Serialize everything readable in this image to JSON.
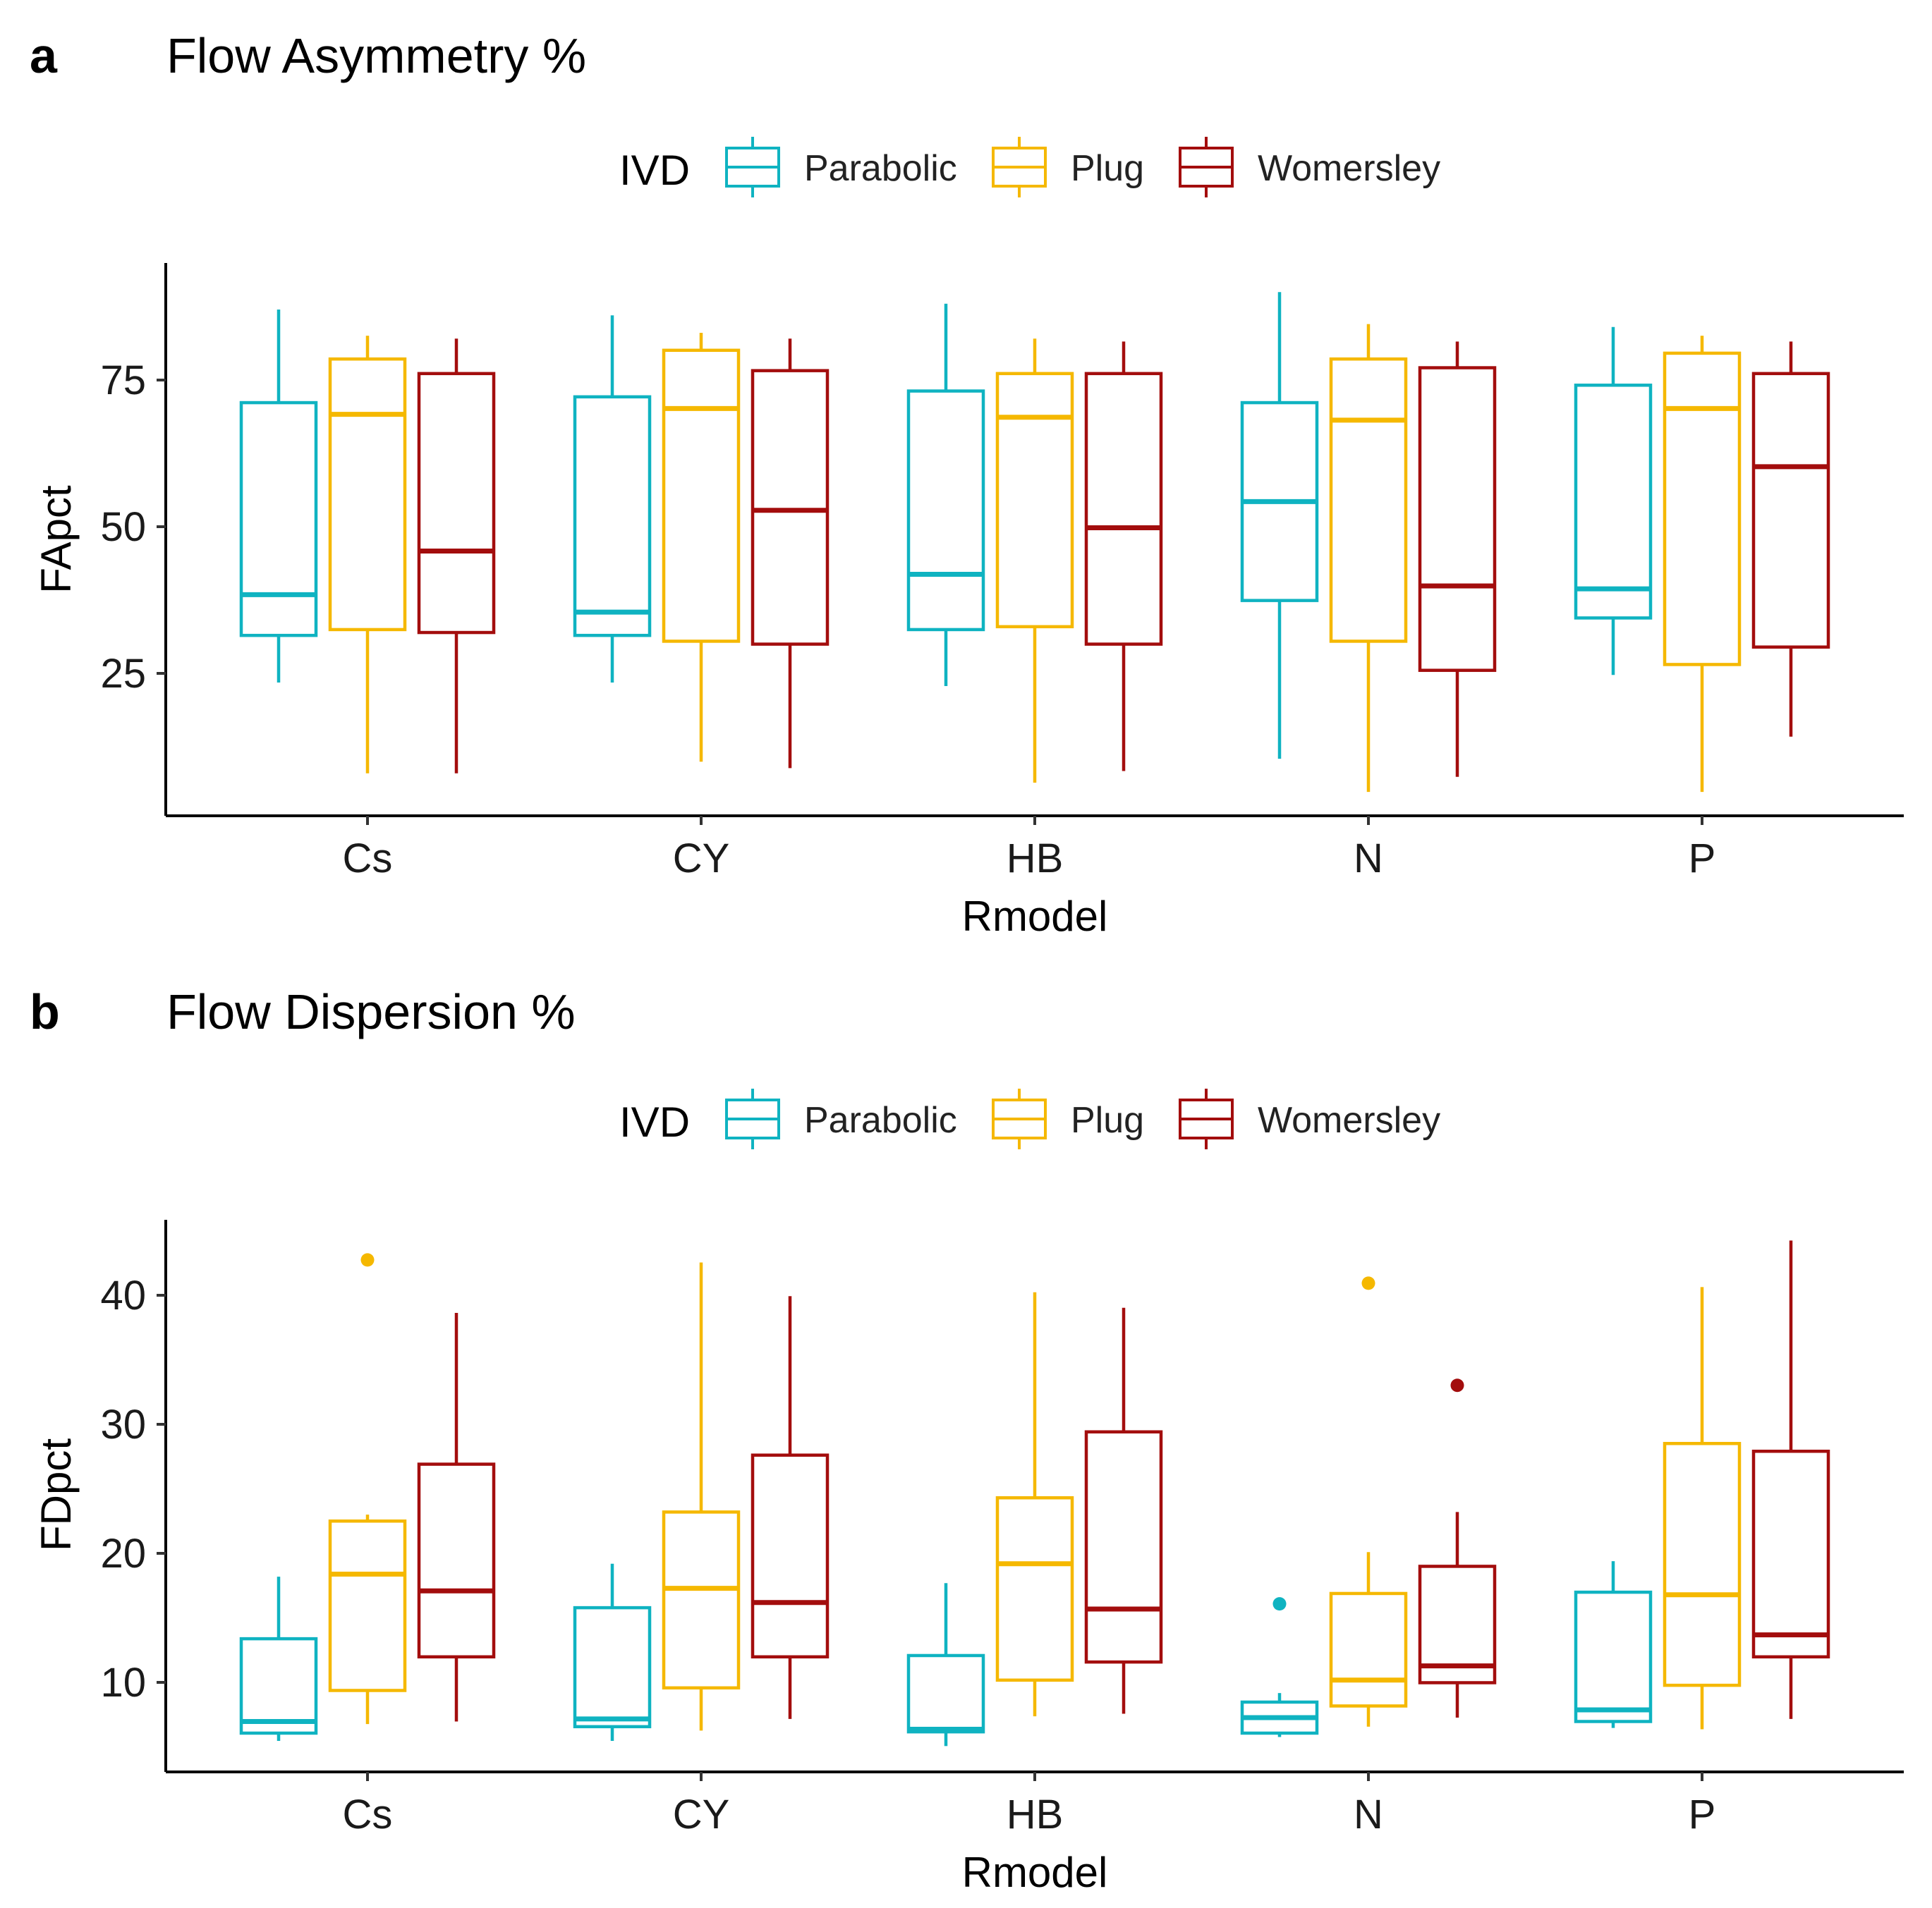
{
  "colors": {
    "Parabolic": "#0fb3c1",
    "Plug": "#f5b800",
    "Womersley": "#a30d0d"
  },
  "chart_data": [
    {
      "type": "boxplot",
      "tag": "a",
      "title": "Flow Asymmetry %",
      "legend": {
        "title": "IVD",
        "placement": "top-center",
        "entries": [
          "Parabolic",
          "Plug",
          "Womersley"
        ]
      },
      "xlabel": "Rmodel",
      "ylabel": "FApct",
      "categories": [
        "Cs",
        "CY",
        "HB",
        "N",
        "P"
      ],
      "ylim": [
        1,
        96
      ],
      "yticks": [
        25,
        50,
        75
      ],
      "series": [
        {
          "name": "Parabolic",
          "boxes": [
            {
              "lower": 23.9,
              "q1": 32.0,
              "median": 39.0,
              "q3": 72.0,
              "upper": 88.0,
              "outliers": []
            },
            {
              "lower": 23.9,
              "q1": 32.0,
              "median": 36.0,
              "q3": 73.0,
              "upper": 87.0,
              "outliers": []
            },
            {
              "lower": 23.3,
              "q1": 33.0,
              "median": 42.5,
              "q3": 74.0,
              "upper": 89.0,
              "outliers": []
            },
            {
              "lower": 10.8,
              "q1": 38.0,
              "median": 55.0,
              "q3": 72.0,
              "upper": 91.0,
              "outliers": []
            },
            {
              "lower": 25.2,
              "q1": 35.0,
              "median": 40.0,
              "q3": 75.0,
              "upper": 85.0,
              "outliers": []
            }
          ]
        },
        {
          "name": "Plug",
          "boxes": [
            {
              "lower": 8.3,
              "q1": 33.0,
              "median": 70.0,
              "q3": 79.5,
              "upper": 83.5,
              "outliers": []
            },
            {
              "lower": 10.3,
              "q1": 31.0,
              "median": 71.0,
              "q3": 81.0,
              "upper": 84.0,
              "outliers": []
            },
            {
              "lower": 6.7,
              "q1": 33.5,
              "median": 69.5,
              "q3": 77.0,
              "upper": 83.0,
              "outliers": []
            },
            {
              "lower": 5.1,
              "q1": 31.0,
              "median": 69.0,
              "q3": 79.5,
              "upper": 85.5,
              "outliers": []
            },
            {
              "lower": 5.1,
              "q1": 27.0,
              "median": 71.0,
              "q3": 80.5,
              "upper": 83.5,
              "outliers": []
            }
          ]
        },
        {
          "name": "Womersley",
          "boxes": [
            {
              "lower": 8.3,
              "q1": 32.5,
              "median": 46.5,
              "q3": 77.0,
              "upper": 83.0,
              "outliers": []
            },
            {
              "lower": 9.2,
              "q1": 30.5,
              "median": 53.5,
              "q3": 77.5,
              "upper": 83.0,
              "outliers": []
            },
            {
              "lower": 8.7,
              "q1": 30.5,
              "median": 50.5,
              "q3": 77.0,
              "upper": 82.5,
              "outliers": []
            },
            {
              "lower": 7.7,
              "q1": 26.0,
              "median": 40.5,
              "q3": 78.0,
              "upper": 82.5,
              "outliers": []
            },
            {
              "lower": 14.6,
              "q1": 30.0,
              "median": 61.0,
              "q3": 77.0,
              "upper": 82.5,
              "outliers": []
            }
          ]
        }
      ]
    },
    {
      "type": "boxplot",
      "tag": "b",
      "title": "Flow Dispersion %",
      "legend": {
        "title": "IVD",
        "placement": "top-center",
        "entries": [
          "Parabolic",
          "Plug",
          "Womersley"
        ]
      },
      "xlabel": "Rmodel",
      "ylabel": "FDpct",
      "categories": [
        "Cs",
        "CY",
        "HB",
        "N",
        "P"
      ],
      "ylim": [
        2.9,
        45.6
      ],
      "yticks": [
        10,
        20,
        30,
        40
      ],
      "series": [
        {
          "name": "Parabolic",
          "boxes": [
            {
              "lower": 5.3,
              "q1": 5.9,
              "median": 6.8,
              "q3": 13.2,
              "upper": 18.0,
              "outliers": []
            },
            {
              "lower": 5.3,
              "q1": 6.4,
              "median": 7.0,
              "q3": 15.6,
              "upper": 19.0,
              "outliers": []
            },
            {
              "lower": 4.9,
              "q1": 6.0,
              "median": 6.2,
              "q3": 11.9,
              "upper": 17.5,
              "outliers": []
            },
            {
              "lower": 5.6,
              "q1": 5.9,
              "median": 7.1,
              "q3": 8.3,
              "upper": 9.0,
              "outliers": [
                15.9
              ]
            },
            {
              "lower": 6.3,
              "q1": 6.8,
              "median": 7.7,
              "q3": 16.8,
              "upper": 19.2,
              "outliers": []
            }
          ]
        },
        {
          "name": "Plug",
          "boxes": [
            {
              "lower": 6.6,
              "q1": 9.2,
              "median": 18.2,
              "q3": 22.3,
              "upper": 22.8,
              "outliers": [
                42.5
              ]
            },
            {
              "lower": 6.1,
              "q1": 9.4,
              "median": 17.1,
              "q3": 23.0,
              "upper": 42.3,
              "outliers": []
            },
            {
              "lower": 7.2,
              "q1": 10.0,
              "median": 19.0,
              "q3": 24.1,
              "upper": 40.0,
              "outliers": []
            },
            {
              "lower": 6.4,
              "q1": 8.0,
              "median": 10.0,
              "q3": 16.7,
              "upper": 19.9,
              "outliers": [
                40.7
              ]
            },
            {
              "lower": 6.2,
              "q1": 9.6,
              "median": 16.6,
              "q3": 28.3,
              "upper": 40.4,
              "outliers": []
            }
          ]
        },
        {
          "name": "Womersley",
          "boxes": [
            {
              "lower": 6.8,
              "q1": 11.8,
              "median": 16.9,
              "q3": 26.7,
              "upper": 38.4,
              "outliers": []
            },
            {
              "lower": 7.0,
              "q1": 11.8,
              "median": 16.0,
              "q3": 27.4,
              "upper": 39.7,
              "outliers": []
            },
            {
              "lower": 7.4,
              "q1": 11.4,
              "median": 15.5,
              "q3": 29.2,
              "upper": 38.8,
              "outliers": []
            },
            {
              "lower": 7.1,
              "q1": 9.8,
              "median": 11.1,
              "q3": 18.8,
              "upper": 23.0,
              "outliers": [
                32.8
              ]
            },
            {
              "lower": 7.0,
              "q1": 11.8,
              "median": 13.5,
              "q3": 27.7,
              "upper": 44.0,
              "outliers": []
            }
          ]
        }
      ]
    }
  ]
}
